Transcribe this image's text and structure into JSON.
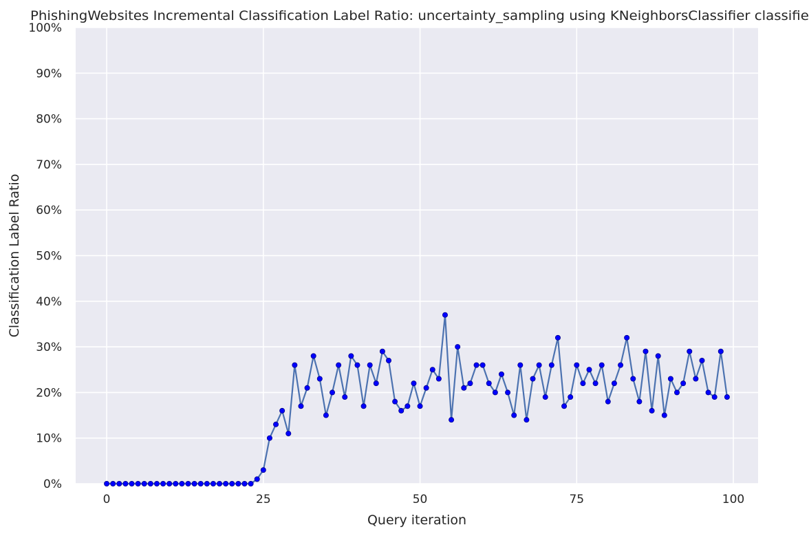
{
  "chart_data": {
    "type": "line",
    "title": "PhishingWebsites Incremental Classification Label Ratio: uncertainty_sampling using KNeighborsClassifier classifier",
    "xlabel": "Query iteration",
    "ylabel": "Classification Label Ratio",
    "xlim": [
      -4.95,
      103.95
    ],
    "ylim": [
      0,
      1
    ],
    "xticks": [
      0,
      25,
      50,
      75,
      100
    ],
    "xtick_labels": [
      "0",
      "25",
      "50",
      "75",
      "100"
    ],
    "yticks": [
      0,
      0.1,
      0.2,
      0.3,
      0.4,
      0.5,
      0.6,
      0.7,
      0.8,
      0.9,
      1.0
    ],
    "ytick_labels": [
      "0%",
      "10%",
      "20%",
      "30%",
      "40%",
      "50%",
      "60%",
      "70%",
      "80%",
      "90%",
      "100%"
    ],
    "grid": true,
    "legend": "none",
    "background_color": "#eaeaf2",
    "grid_color": "#ffffff",
    "line_color": "#4c72b0",
    "marker_color": "#0000ff",
    "series": [
      {
        "x": [
          0,
          1,
          2,
          3,
          4,
          5,
          6,
          7,
          8,
          9,
          10,
          11,
          12,
          13,
          14,
          15,
          16,
          17,
          18,
          19,
          20,
          21,
          22,
          23,
          24,
          25,
          26,
          27,
          28,
          29,
          30,
          31,
          32,
          33,
          34,
          35,
          36,
          37,
          38,
          39,
          40,
          41,
          42,
          43,
          44,
          45,
          46,
          47,
          48,
          49,
          50,
          51,
          52,
          53,
          54,
          55,
          56,
          57,
          58,
          59,
          60,
          61,
          62,
          63,
          64,
          65,
          66,
          67,
          68,
          69,
          70,
          71,
          72,
          73,
          74,
          75,
          76,
          77,
          78,
          79,
          80,
          81,
          82,
          83,
          84,
          85,
          86,
          87,
          88,
          89,
          90,
          91,
          92,
          93,
          94,
          95,
          96,
          97,
          98,
          99
        ],
        "values": [
          0,
          0,
          0,
          0,
          0,
          0,
          0,
          0,
          0,
          0,
          0,
          0,
          0,
          0,
          0,
          0,
          0,
          0,
          0,
          0,
          0,
          0,
          0,
          0,
          0.01,
          0.03,
          0.1,
          0.13,
          0.16,
          0.11,
          0.26,
          0.17,
          0.21,
          0.28,
          0.23,
          0.15,
          0.2,
          0.26,
          0.19,
          0.28,
          0.26,
          0.17,
          0.26,
          0.22,
          0.29,
          0.27,
          0.18,
          0.16,
          0.17,
          0.22,
          0.17,
          0.21,
          0.25,
          0.23,
          0.37,
          0.14,
          0.3,
          0.21,
          0.22,
          0.26,
          0.26,
          0.22,
          0.2,
          0.24,
          0.2,
          0.15,
          0.26,
          0.14,
          0.23,
          0.26,
          0.19,
          0.26,
          0.32,
          0.17,
          0.19,
          0.26,
          0.22,
          0.25,
          0.22,
          0.26,
          0.18,
          0.22,
          0.26,
          0.32,
          0.23,
          0.18,
          0.29,
          0.16,
          0.28,
          0.15,
          0.23,
          0.2,
          0.22,
          0.29,
          0.23,
          0.27,
          0.2,
          0.19,
          0.29,
          0.19
        ]
      }
    ]
  }
}
